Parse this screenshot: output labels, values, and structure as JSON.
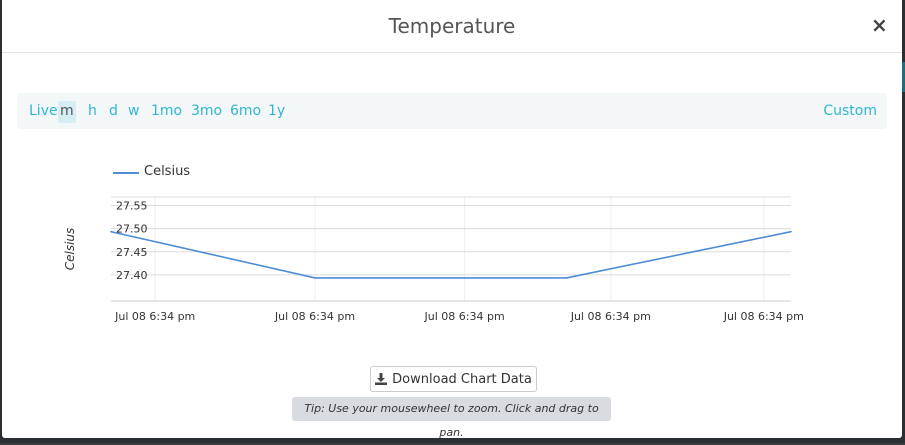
{
  "modal": {
    "title": "Temperature",
    "close_label": "×"
  },
  "range_bar": {
    "items": [
      {
        "label": "Live",
        "active": false
      },
      {
        "label": "m",
        "active": true
      },
      {
        "label": "h",
        "active": false
      },
      {
        "label": "d",
        "active": false
      },
      {
        "label": "w",
        "active": false
      },
      {
        "label": "1mo",
        "active": false
      },
      {
        "label": "3mo",
        "active": false
      },
      {
        "label": "6mo",
        "active": false
      },
      {
        "label": "1y",
        "active": false
      }
    ],
    "custom_label": "Custom",
    "accent_color": "#30b6d2"
  },
  "chart_data": {
    "type": "line",
    "ylabel": "Celsius",
    "xlabel": "",
    "title": "",
    "ylim": [
      27.35,
      27.575
    ],
    "yticks": [
      "27.55",
      "27.50",
      "27.45",
      "27.40"
    ],
    "ytick_values": [
      27.55,
      27.5,
      27.45,
      27.4
    ],
    "xticks": [
      "Jul 08 6:34 pm",
      "Jul 08 6:34 pm",
      "Jul 08 6:34 pm",
      "Jul 08 6:34 pm",
      "Jul 08 6:34 pm"
    ],
    "grid": true,
    "legend": "top-left",
    "series": [
      {
        "name": "Celsius",
        "color": "#4e8cd6",
        "points": [
          {
            "t": 0.0,
            "y": 27.5
          },
          {
            "t": 0.3,
            "y": 27.4
          },
          {
            "t": 0.67,
            "y": 27.4
          },
          {
            "t": 1.0,
            "y": 27.5
          }
        ]
      }
    ]
  },
  "download_button": {
    "label": "Download Chart Data",
    "icon": "download-icon"
  },
  "tip": {
    "text": "Tip: Use your mousewheel to zoom. Click and drag to pan."
  }
}
